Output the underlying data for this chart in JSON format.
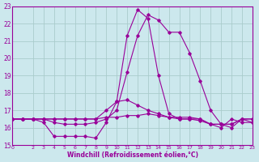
{
  "xlabel": "Windchill (Refroidissement éolien,°C)",
  "bg_color": "#cce8ed",
  "grid_color": "#aacccc",
  "line_color": "#990099",
  "xlim": [
    0,
    23
  ],
  "ylim": [
    15,
    23
  ],
  "yticks": [
    15,
    16,
    17,
    18,
    19,
    20,
    21,
    22,
    23
  ],
  "xticks": [
    0,
    2,
    3,
    4,
    5,
    6,
    7,
    8,
    9,
    10,
    11,
    12,
    13,
    14,
    15,
    16,
    17,
    18,
    19,
    20,
    21,
    22,
    23
  ],
  "series": [
    [
      16.5,
      16.5,
      16.5,
      16.3,
      15.5,
      15.5,
      15.5,
      15.5,
      15.4,
      16.3,
      17.5,
      21.3,
      22.8,
      22.3,
      19.0,
      16.8,
      16.5,
      16.5,
      16.4,
      16.2,
      16.0,
      16.5,
      16.3,
      16.3
    ],
    [
      16.5,
      16.5,
      16.5,
      16.5,
      16.3,
      16.2,
      16.2,
      16.2,
      16.3,
      16.5,
      17.0,
      19.2,
      21.3,
      22.5,
      22.2,
      21.5,
      21.5,
      20.3,
      18.7,
      17.0,
      16.2,
      16.0,
      16.5,
      16.3
    ],
    [
      16.5,
      16.5,
      16.5,
      16.5,
      16.5,
      16.5,
      16.5,
      16.5,
      16.5,
      16.6,
      16.6,
      16.7,
      16.7,
      16.8,
      16.7,
      16.6,
      16.6,
      16.6,
      16.5,
      16.2,
      16.2,
      16.2,
      16.5,
      16.5
    ],
    [
      16.5,
      16.5,
      16.5,
      16.5,
      16.5,
      16.5,
      16.5,
      16.5,
      16.5,
      17.0,
      17.5,
      17.6,
      17.3,
      17.0,
      16.8,
      16.6,
      16.5,
      16.5,
      16.5,
      16.2,
      16.2,
      16.2,
      16.5,
      16.5
    ]
  ]
}
